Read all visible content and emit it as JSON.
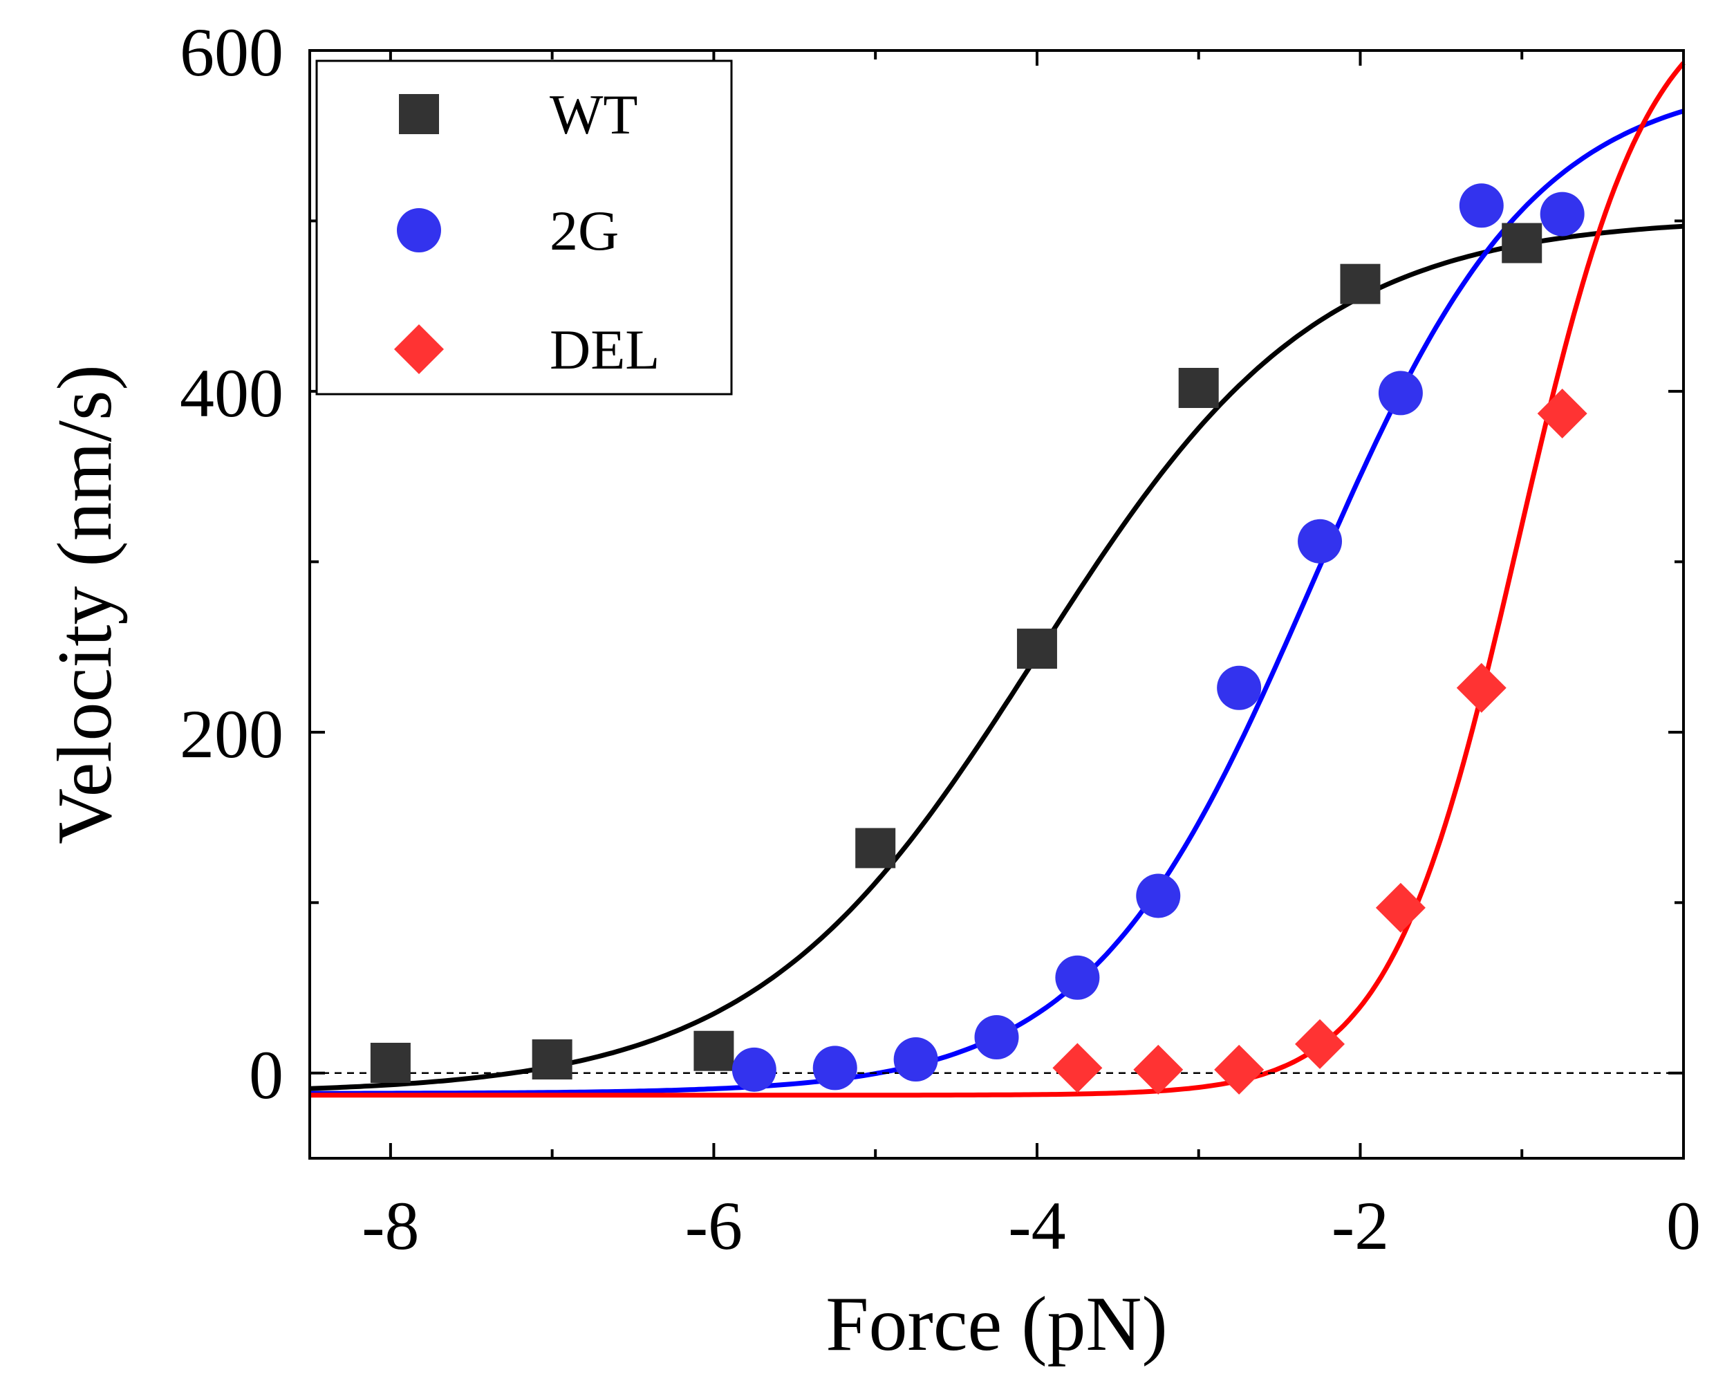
{
  "chart_data": {
    "type": "scatter",
    "title": "",
    "xlabel": "Force (pN)",
    "ylabel": "Velocity (nm/s)",
    "xlim": [
      -8.5,
      0
    ],
    "ylim": [
      -50,
      600
    ],
    "x_ticks": [
      -8,
      -6,
      -4,
      -2,
      0
    ],
    "x_tick_labels": [
      "-8",
      "-6",
      "-4",
      "-2",
      "0"
    ],
    "x_minor_ticks": [
      -7,
      -5,
      -3,
      -1
    ],
    "y_ticks": [
      0,
      200,
      400,
      600
    ],
    "y_tick_labels": [
      "0",
      "200",
      "400",
      "600"
    ],
    "y_minor_ticks": [
      100,
      300,
      500
    ],
    "reference_line": {
      "y": 0,
      "style": "dashed"
    },
    "legend_position": "top-left",
    "series": [
      {
        "name": "WT",
        "marker": "square",
        "color": "#333333",
        "fit_color": "#000000",
        "x": [
          -8,
          -7,
          -6,
          -5,
          -4,
          -3,
          -2,
          -1
        ],
        "values": [
          6,
          8,
          13,
          132,
          249,
          402,
          463,
          487
        ],
        "fit": {
          "vmin": -12,
          "vmax": 502,
          "x0": -4.0,
          "k": 1.15
        }
      },
      {
        "name": "2G",
        "marker": "circle",
        "color": "#3333ee",
        "fit_color": "#0000ff",
        "x": [
          -5.75,
          -5.25,
          -4.75,
          -4.25,
          -3.75,
          -3.25,
          -2.75,
          -2.25,
          -1.75,
          -1.25,
          -0.75
        ],
        "values": [
          2,
          3,
          8,
          21,
          56,
          104,
          226,
          312,
          399,
          509,
          504
        ],
        "fit": {
          "vmin": -12,
          "vmax": 585,
          "x0": -2.3,
          "k": 1.45
        }
      },
      {
        "name": "DEL",
        "marker": "diamond",
        "color": "#ff3333",
        "fit_color": "#ff0000",
        "x": [
          -3.75,
          -3.25,
          -2.75,
          -2.25,
          -1.75,
          -1.25,
          -0.75
        ],
        "values": [
          3,
          2,
          2,
          17,
          97,
          226,
          387
        ],
        "fit": {
          "vmin": -13,
          "vmax": 640,
          "x0": -1.02,
          "k": 2.5
        }
      }
    ]
  }
}
